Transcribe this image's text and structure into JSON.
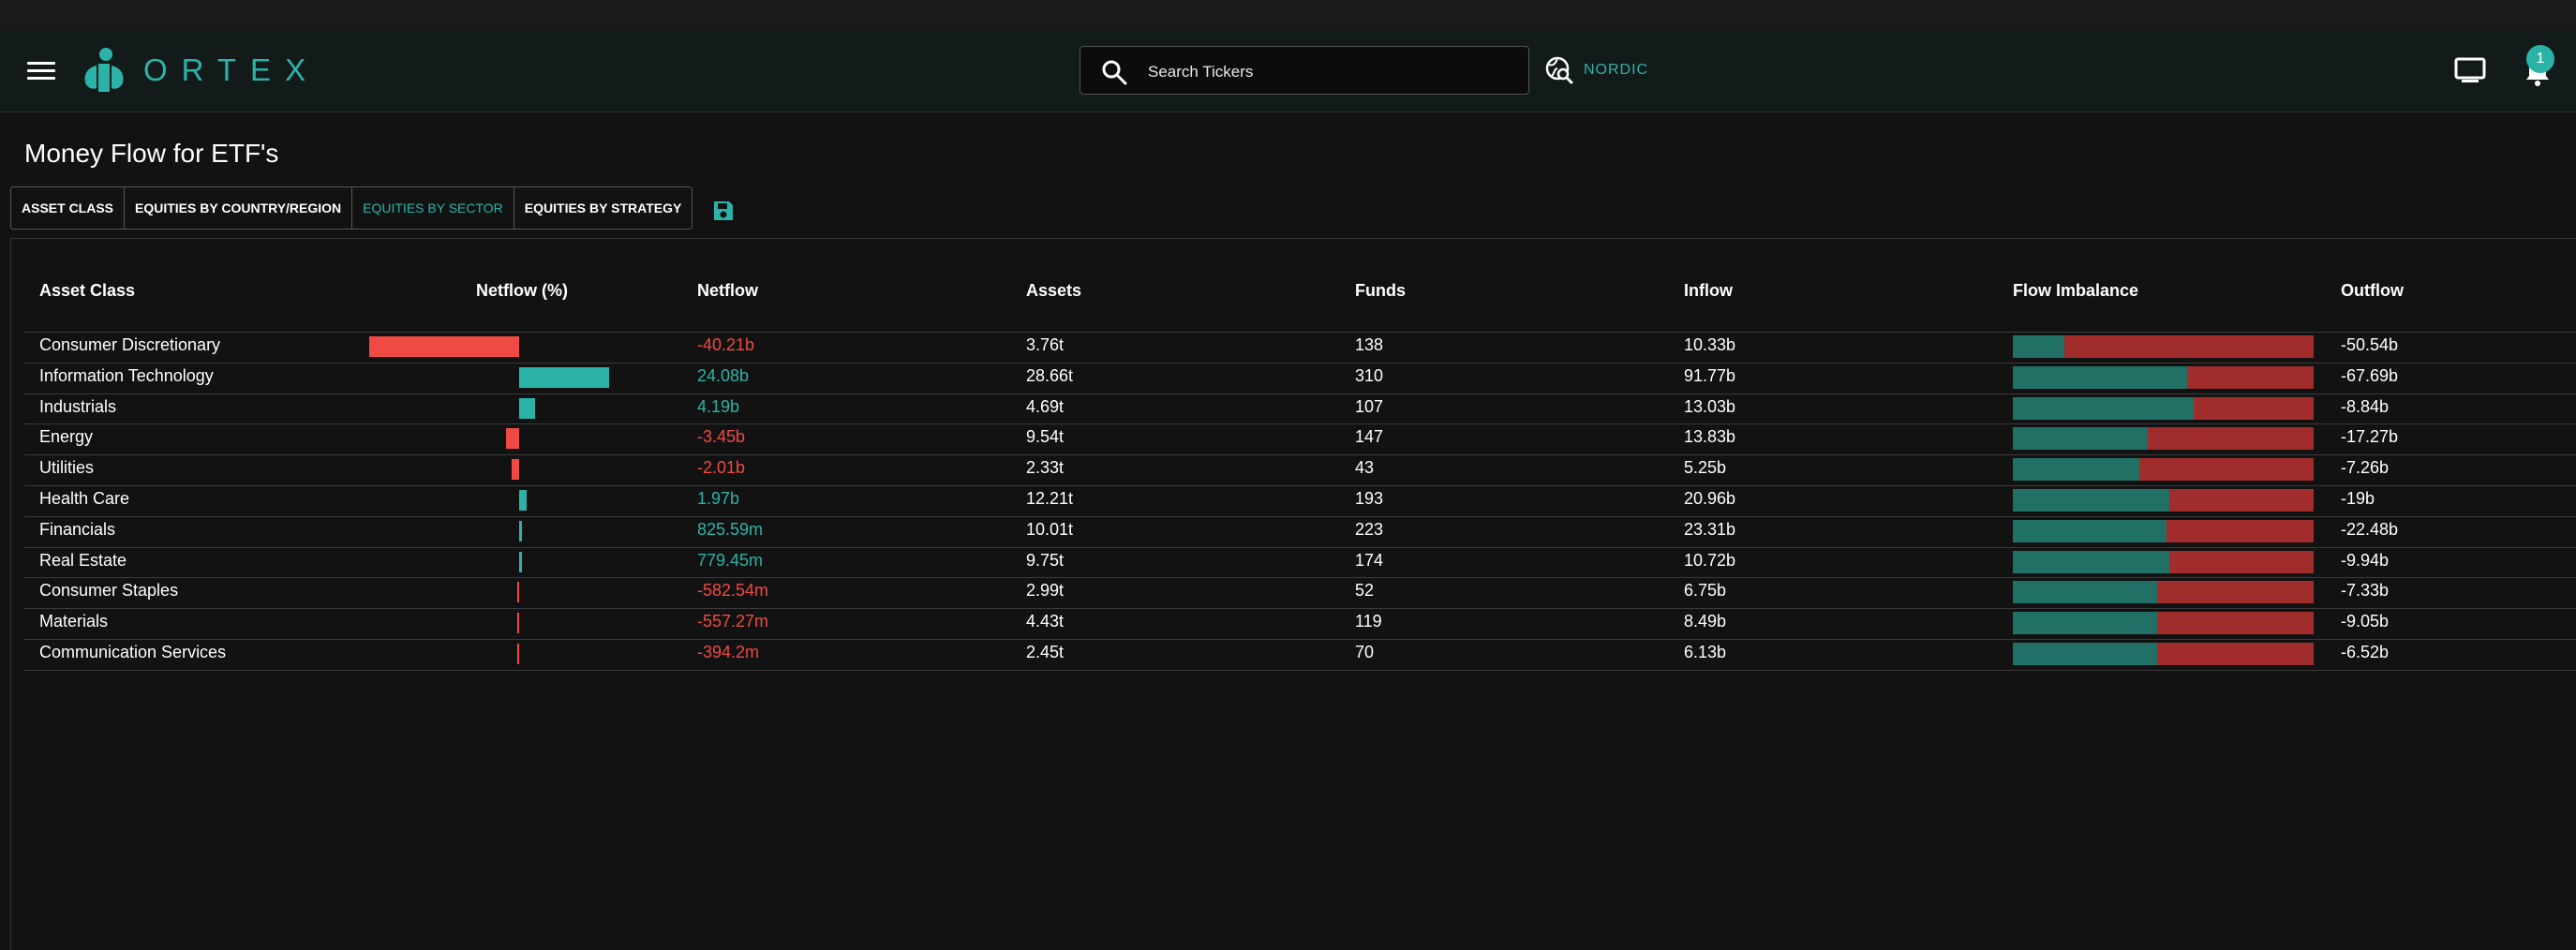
{
  "header": {
    "logo_text": "ORTEX",
    "search_placeholder": "Search Tickers",
    "region_label": "NORDIC",
    "notification_count": "1",
    "accent_color": "#2bb3a8"
  },
  "page": {
    "title": "Money Flow for ETF's"
  },
  "tabs": [
    {
      "label": "ASSET CLASS",
      "active": false
    },
    {
      "label": "EQUITIES BY COUNTRY/REGION",
      "active": false
    },
    {
      "label": "EQUITIES BY SECTOR",
      "active": true
    },
    {
      "label": "EQUITIES BY STRATEGY",
      "active": false
    }
  ],
  "table": {
    "columns": [
      "Asset Class",
      "Netflow (%)",
      "Netflow",
      "Assets",
      "Funds",
      "Inflow",
      "Flow Imbalance",
      "Outflow"
    ],
    "rows": [
      {
        "asset_class": "Consumer Discretionary",
        "netflow": "-40.21b",
        "netflow_value": -40.21,
        "assets": "3.76t",
        "funds": "138",
        "inflow": "10.33b",
        "outflow": "-50.54b",
        "inflow_share": 0.17
      },
      {
        "asset_class": "Information Technology",
        "netflow": "24.08b",
        "netflow_value": 24.08,
        "assets": "28.66t",
        "funds": "310",
        "inflow": "91.77b",
        "outflow": "-67.69b",
        "inflow_share": 0.58
      },
      {
        "asset_class": "Industrials",
        "netflow": "4.19b",
        "netflow_value": 4.19,
        "assets": "4.69t",
        "funds": "107",
        "inflow": "13.03b",
        "outflow": "-8.84b",
        "inflow_share": 0.6
      },
      {
        "asset_class": "Energy",
        "netflow": "-3.45b",
        "netflow_value": -3.45,
        "assets": "9.54t",
        "funds": "147",
        "inflow": "13.83b",
        "outflow": "-17.27b",
        "inflow_share": 0.45
      },
      {
        "asset_class": "Utilities",
        "netflow": "-2.01b",
        "netflow_value": -2.01,
        "assets": "2.33t",
        "funds": "43",
        "inflow": "5.25b",
        "outflow": "-7.26b",
        "inflow_share": 0.42
      },
      {
        "asset_class": "Health Care",
        "netflow": "1.97b",
        "netflow_value": 1.97,
        "assets": "12.21t",
        "funds": "193",
        "inflow": "20.96b",
        "outflow": "-19b",
        "inflow_share": 0.52
      },
      {
        "asset_class": "Financials",
        "netflow": "825.59m",
        "netflow_value": 0.82559,
        "assets": "10.01t",
        "funds": "223",
        "inflow": "23.31b",
        "outflow": "-22.48b",
        "inflow_share": 0.51
      },
      {
        "asset_class": "Real Estate",
        "netflow": "779.45m",
        "netflow_value": 0.77945,
        "assets": "9.75t",
        "funds": "174",
        "inflow": "10.72b",
        "outflow": "-9.94b",
        "inflow_share": 0.52
      },
      {
        "asset_class": "Consumer Staples",
        "netflow": "-582.54m",
        "netflow_value": -0.58254,
        "assets": "2.99t",
        "funds": "52",
        "inflow": "6.75b",
        "outflow": "-7.33b",
        "inflow_share": 0.48
      },
      {
        "asset_class": "Materials",
        "netflow": "-557.27m",
        "netflow_value": -0.55727,
        "assets": "4.43t",
        "funds": "119",
        "inflow": "8.49b",
        "outflow": "-9.05b",
        "inflow_share": 0.48
      },
      {
        "asset_class": "Communication Services",
        "netflow": "-394.2m",
        "netflow_value": -0.3942,
        "assets": "2.45t",
        "funds": "70",
        "inflow": "6.13b",
        "outflow": "-6.52b",
        "inflow_share": 0.48
      }
    ]
  }
}
